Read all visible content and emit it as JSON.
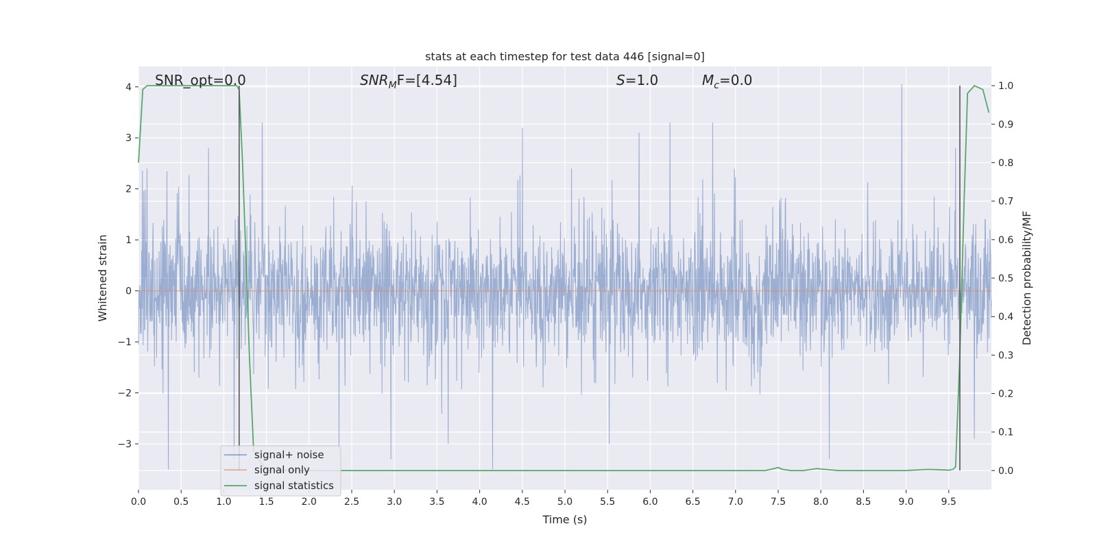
{
  "chart_data": {
    "type": "line",
    "title": "stats at each timestep for test data 446 [signal=0]",
    "xlabel": "Time (s)",
    "ylabel_left": "Whitened strain",
    "ylabel_right": "Detection probability/MF",
    "xlim": [
      0,
      10
    ],
    "ylim_left": [
      -3.9,
      4.4
    ],
    "ylim_right": [
      -0.05,
      1.05
    ],
    "x_ticks": [
      "0.0",
      "0.5",
      "1.0",
      "1.5",
      "2.0",
      "2.5",
      "3.0",
      "3.5",
      "4.0",
      "4.5",
      "5.0",
      "5.5",
      "6.0",
      "6.5",
      "7.0",
      "7.5",
      "8.0",
      "8.5",
      "9.0",
      "9.5"
    ],
    "y_ticks_left": [
      "4",
      "3",
      "2",
      "1",
      "0",
      "−1",
      "−2",
      "−3"
    ],
    "y_ticks_right": [
      "1.0",
      "0.9",
      "0.8",
      "0.7",
      "0.6",
      "0.5",
      "0.4",
      "0.3",
      "0.2",
      "0.1",
      "0.0"
    ],
    "grid": true,
    "legend_position": "lower-left",
    "annotations": {
      "snr_opt": "SNR_opt=0.0",
      "snr_mf_main": "SNR",
      "snr_mf_sub": "M",
      "snr_mf_rest": "F=[4.54]",
      "s_var": "S",
      "s_rest": "=1.0",
      "mc_var": "M",
      "mc_sub": "c",
      "mc_rest": "=0.0"
    },
    "vlines_x": [
      1.18,
      9.63
    ],
    "series": [
      {
        "name": "signal+ noise",
        "color": "#4c72b0",
        "style": "dense noise",
        "envelope_typical": [
          -1.7,
          2.0
        ],
        "peaks": [
          {
            "x": 0.1,
            "y": 2.4
          },
          {
            "x": 0.35,
            "y": -3.5
          },
          {
            "x": 0.82,
            "y": 2.8
          },
          {
            "x": 1.12,
            "y": -3.3
          },
          {
            "x": 1.45,
            "y": 3.3
          },
          {
            "x": 2.35,
            "y": -3.2
          },
          {
            "x": 2.96,
            "y": -3.3
          },
          {
            "x": 3.63,
            "y": -3.0
          },
          {
            "x": 4.15,
            "y": -3.5
          },
          {
            "x": 4.5,
            "y": 3.2
          },
          {
            "x": 5.52,
            "y": -3.0
          },
          {
            "x": 5.87,
            "y": 3.1
          },
          {
            "x": 6.23,
            "y": 3.3
          },
          {
            "x": 6.73,
            "y": 3.3
          },
          {
            "x": 8.95,
            "y": 4.05
          },
          {
            "x": 8.1,
            "y": -3.3
          },
          {
            "x": 9.8,
            "y": -2.9
          },
          {
            "x": 9.58,
            "y": 2.8
          }
        ]
      },
      {
        "name": "signal only",
        "color": "#dd8452",
        "x": [
          0,
          10
        ],
        "y": [
          0,
          0
        ]
      },
      {
        "name": "signal statistics",
        "color": "#55a868",
        "axis": "right",
        "x": [
          0.0,
          0.05,
          0.1,
          0.2,
          0.3,
          0.5,
          0.7,
          0.9,
          1.05,
          1.15,
          1.18,
          1.22,
          1.26,
          1.3,
          1.35,
          1.5,
          2.0,
          3.0,
          4.0,
          5.0,
          6.0,
          7.0,
          7.35,
          7.45,
          7.5,
          7.55,
          7.65,
          7.8,
          7.95,
          8.05,
          8.2,
          8.5,
          9.0,
          9.25,
          9.4,
          9.5,
          9.55,
          9.58,
          9.63,
          9.68,
          9.72,
          9.8,
          9.9,
          9.97
        ],
        "y": [
          0.8,
          0.99,
          1.0,
          1.0,
          1.0,
          1.0,
          1.0,
          1.0,
          1.0,
          1.0,
          0.99,
          0.8,
          0.55,
          0.3,
          0.05,
          0.0,
          0.0,
          0.0,
          0.0,
          0.0,
          0.0,
          0.0,
          0.0,
          0.005,
          0.008,
          0.003,
          0.0,
          0.0,
          0.005,
          0.003,
          0.0,
          0.0,
          0.0,
          0.003,
          0.002,
          0.001,
          0.003,
          0.01,
          0.3,
          0.7,
          0.98,
          1.0,
          0.99,
          0.93
        ]
      }
    ]
  }
}
